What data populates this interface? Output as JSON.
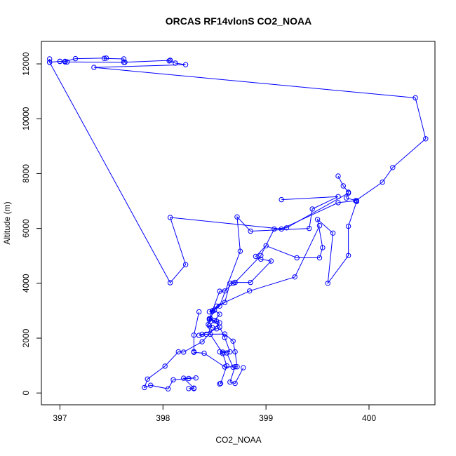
{
  "chart_data": {
    "type": "scatter",
    "title": "ORCAS RF14vlonS CO2_NOAA",
    "xlabel": "CO2_NOAA",
    "ylabel": "Altitude (m)",
    "xlim": [
      396.82,
      400.64
    ],
    "ylim": [
      -430,
      12820
    ],
    "xticks": [
      397,
      398,
      399,
      400
    ],
    "yticks": [
      0,
      2000,
      4000,
      6000,
      8000,
      10000,
      12000
    ],
    "grid": false,
    "legend": "none",
    "color": "#0000ff",
    "series": [
      {
        "marker": "open-circle",
        "line": true,
        "x": [
          396.9,
          396.9,
          397.0,
          397.07,
          397.05,
          397.15,
          397.45,
          397.43,
          397.62,
          397.63,
          398.07,
          398.06,
          398.12,
          398.22,
          397.33,
          400.45,
          400.55,
          400.23,
          400.13,
          399.87,
          399.7,
          399.15,
          398.07,
          398.22,
          398.07,
          396.9,
          397.0,
          397.05,
          397.62,
          398.07
        ],
        "y": [
          12180,
          12060,
          12090,
          12070,
          12090,
          12190,
          12210,
          12200,
          12180,
          12060,
          12130,
          12110,
          12030,
          11970,
          11870,
          10760,
          9270,
          8220,
          7690,
          7010,
          6940,
          5980,
          6400,
          4680,
          4020,
          12060,
          12090,
          12070,
          12060,
          12130
        ]
      },
      {
        "marker": "open-circle",
        "line": true,
        "x": [
          399.7,
          399.75,
          399.8,
          399.78,
          399.88,
          399.88,
          399.8,
          399.8,
          399.6,
          399.65,
          399.5,
          399.55,
          399.52,
          399.3,
          399.0,
          398.9,
          398.95,
          399.05,
          398.85,
          398.7,
          398.65,
          398.6,
          398.45,
          398.5,
          398.55,
          398.5,
          398.45,
          398.48,
          398.52,
          398.38,
          398.35,
          398.42,
          398.6,
          398.68,
          398.7,
          398.72,
          398.6,
          398.4,
          398.3,
          398.3,
          398.3,
          398.35
        ],
        "y": [
          7910,
          7550,
          7320,
          7110,
          7010,
          6980,
          6080,
          5010,
          4000,
          5830,
          6330,
          5300,
          4930,
          4930,
          5370,
          4980,
          4880,
          4810,
          4030,
          4030,
          4000,
          3300,
          2960,
          3020,
          2870,
          2640,
          2450,
          2380,
          2340,
          2140,
          2100,
          2140,
          2150,
          1890,
          1500,
          960,
          950,
          1450,
          1480,
          1510,
          2110,
          2960
        ]
      },
      {
        "marker": "open-circle",
        "line": true,
        "x": [
          399.15,
          399.7,
          399.45,
          399.42,
          398.85,
          398.72,
          398.75,
          398.55,
          398.48,
          398.45,
          398.52,
          398.55,
          398.38,
          398.2,
          398.15,
          398.02,
          397.85,
          397.82,
          397.88,
          398.05,
          398.1,
          398.25,
          398.32,
          398.2,
          398.3,
          398.25,
          398.3
        ],
        "y": [
          7050,
          7160,
          6710,
          6000,
          5900,
          6420,
          5170,
          3170,
          2980,
          2710,
          2620,
          2560,
          1870,
          1490,
          1500,
          980,
          510,
          200,
          280,
          150,
          480,
          530,
          550,
          540,
          180,
          160,
          160
        ]
      },
      {
        "marker": "open-circle",
        "line": true,
        "x": [
          399.8,
          399.2,
          399.08,
          398.95,
          398.7,
          398.68,
          398.6,
          398.55,
          398.48,
          398.45,
          398.5,
          398.55,
          398.6,
          398.65,
          398.58,
          398.55,
          398.62,
          398.68,
          398.7,
          398.65,
          398.7,
          398.78
        ],
        "y": [
          7290,
          6020,
          5980,
          5010,
          4030,
          4000,
          3720,
          3710,
          3000,
          2670,
          2640,
          2400,
          2020,
          1500,
          1490,
          1500,
          1460,
          940,
          960,
          400,
          350,
          920
        ]
      },
      {
        "marker": "open-circle",
        "line": true,
        "x": [
          399.52,
          399.28,
          398.84,
          398.52,
          398.46,
          398.44,
          398.46,
          398.58,
          398.62,
          398.56,
          398.55
        ],
        "y": [
          6100,
          4230,
          3720,
          3170,
          2720,
          2500,
          2140,
          1440,
          990,
          350,
          330
        ]
      }
    ]
  }
}
